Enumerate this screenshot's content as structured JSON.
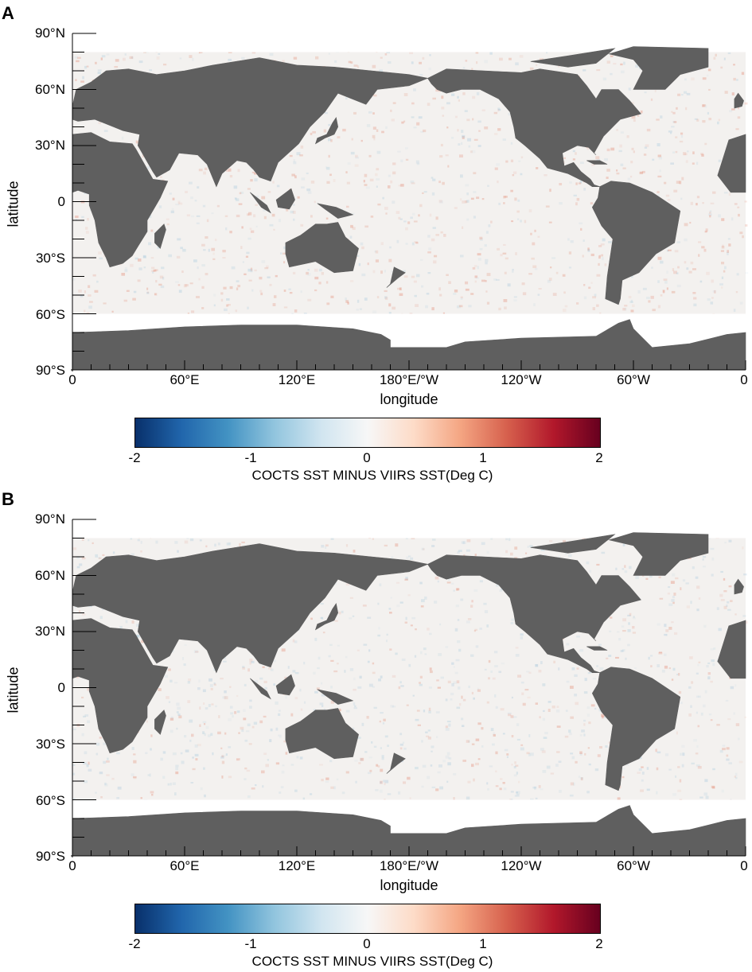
{
  "colors": {
    "land": "#5f5f5f",
    "ocean_base": "#f3f1ef",
    "warm": "#e07a5f",
    "cool": "#9dc3d9",
    "colormap": [
      "#08306b",
      "#2166ac",
      "#4393c3",
      "#92c5de",
      "#d1e5f0",
      "#f7f7f7",
      "#fddbc7",
      "#f4a582",
      "#d6604d",
      "#b2182b",
      "#67001f"
    ]
  },
  "axes": {
    "ylabel": "latitude",
    "xlabel": "longitude",
    "lat_ticks": [
      "90°N",
      "60°N",
      "30°N",
      "0",
      "30°S",
      "60°S",
      "90°S"
    ],
    "lon_ticks": [
      "0",
      "60°E",
      "120°E",
      "180°E/°W",
      "120°W",
      "60°W",
      "0"
    ]
  },
  "colorbar": {
    "title": "COCTS SST MINUS VIIRS SST(Deg C)",
    "ticks": [
      "-2",
      "-1",
      "0",
      "1",
      "2"
    ],
    "range": [
      -2,
      2
    ]
  },
  "panels": [
    {
      "letter": "A"
    },
    {
      "letter": "B"
    }
  ]
}
